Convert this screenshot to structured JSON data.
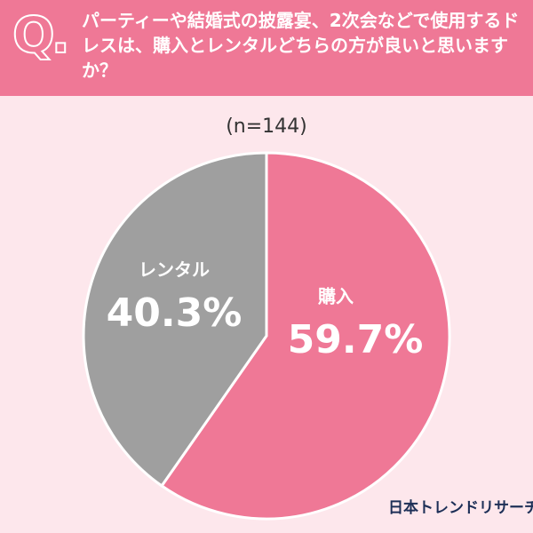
{
  "header": {
    "q_mark": "Q.",
    "question": "パーティーや結婚式の披露宴、2次会などで使用するドレスは、購入とレンタルどちらの方が良いと思いますか？"
  },
  "chart_data": {
    "type": "pie",
    "subtitle": "(n=144)",
    "categories": [
      "購入",
      "レンタル"
    ],
    "values": [
      59.7,
      40.3
    ],
    "value_labels": [
      "59.7%",
      "40.3%"
    ],
    "colors": [
      "#ef7896",
      "#9f9f9f"
    ]
  },
  "footer": {
    "brand": "日本トレンドリサーチ"
  }
}
